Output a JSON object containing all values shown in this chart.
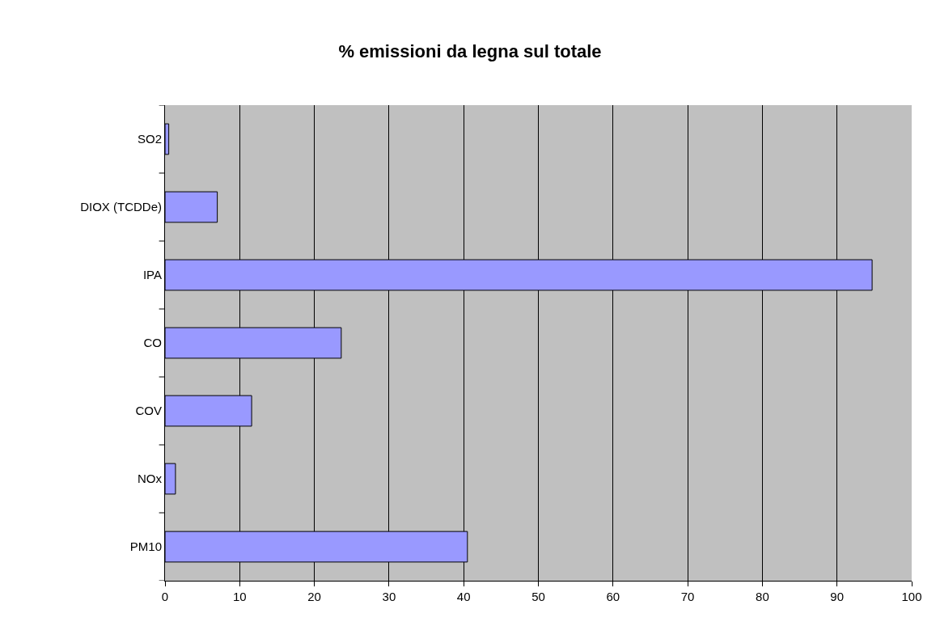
{
  "chart_data": {
    "type": "bar",
    "orientation": "horizontal",
    "title": "% emissioni da legna sul totale",
    "categories": [
      "SO2",
      "DIOX (TCDDe)",
      "IPA",
      "CO",
      "COV",
      "NOx",
      "PM10"
    ],
    "values": [
      0.5,
      7.0,
      94.7,
      23.6,
      11.6,
      1.4,
      40.5
    ],
    "color": "#9999ff",
    "xlim": [
      0,
      100
    ],
    "xticks": [
      0,
      10,
      20,
      30,
      40,
      50,
      60,
      70,
      80,
      90,
      100
    ],
    "grid": "x",
    "legend": false
  }
}
